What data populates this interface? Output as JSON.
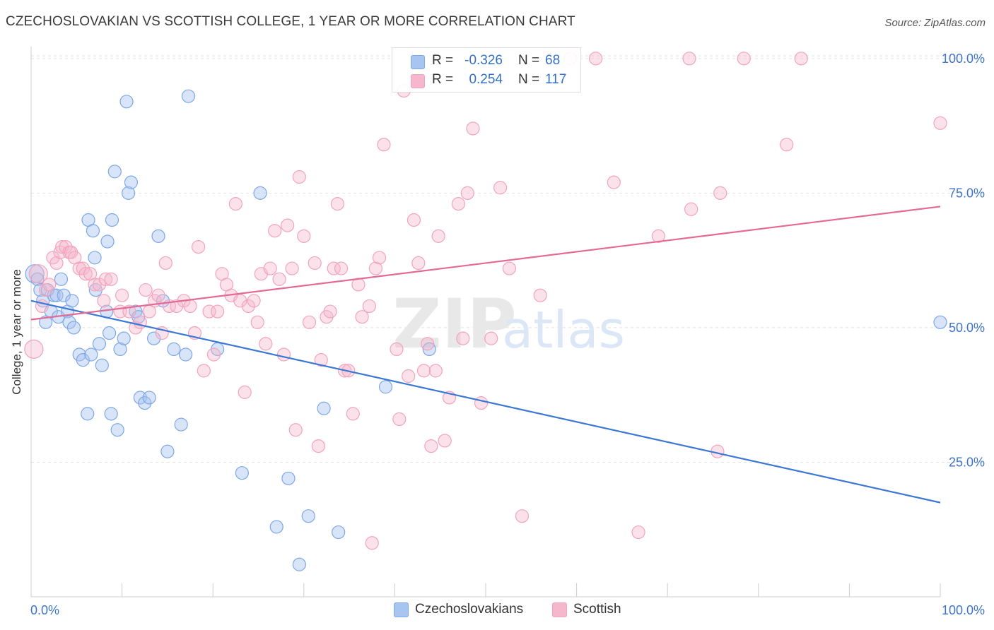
{
  "header": {
    "title": "CZECHOSLOVAKIAN VS SCOTTISH COLLEGE, 1 YEAR OR MORE CORRELATION CHART",
    "source": "Source: ZipAtlas.com"
  },
  "watermark": {
    "zip": "ZIP",
    "atlas": "atlas"
  },
  "legend": {
    "rows": [
      {
        "r_label": "R =",
        "r_value": "-0.326",
        "n_label": "N =",
        "n_value": "68",
        "color": "#a8c4f0"
      },
      {
        "r_label": "R =",
        "r_value": "0.254",
        "n_label": "N =",
        "n_value": "117",
        "color": "#f6b6cb"
      }
    ]
  },
  "bottom_legend": [
    {
      "label": "Czechoslovakians",
      "color": "#a8c4f0"
    },
    {
      "label": "Scottish",
      "color": "#f6b6cb"
    }
  ],
  "chart_data": {
    "type": "scatter",
    "ylabel": "College, 1 year or more",
    "xlabel": "",
    "xlim": [
      0,
      100
    ],
    "ylim": [
      0,
      103
    ],
    "x_tick_labels": [
      "0.0%",
      "100.0%"
    ],
    "y_tick_labels": [
      {
        "value": 100,
        "label": "100.0%"
      },
      {
        "value": 75,
        "label": "75.0%"
      },
      {
        "value": 50,
        "label": "50.0%"
      },
      {
        "value": 25,
        "label": "25.0%"
      }
    ],
    "grid": "dashed horizontal",
    "series": [
      {
        "name": "Czechoslovakians",
        "color": "#7ea7e6",
        "line_color": "#3b78d6",
        "trend": {
          "x": [
            0,
            100
          ],
          "y": [
            55,
            17.5
          ]
        },
        "points": [
          [
            0.4,
            60
          ],
          [
            0.7,
            59
          ],
          [
            1.0,
            57
          ],
          [
            1.3,
            55
          ],
          [
            1.6,
            51
          ],
          [
            1.8,
            57
          ],
          [
            2.2,
            53
          ],
          [
            2.5,
            56
          ],
          [
            2.8,
            56
          ],
          [
            3.0,
            52
          ],
          [
            3.3,
            59
          ],
          [
            3.6,
            56
          ],
          [
            4.0,
            53
          ],
          [
            4.2,
            51
          ],
          [
            4.5,
            55
          ],
          [
            4.7,
            50
          ],
          [
            5.3,
            45
          ],
          [
            5.7,
            44
          ],
          [
            6.2,
            34
          ],
          [
            6.3,
            70
          ],
          [
            6.6,
            45
          ],
          [
            6.8,
            68
          ],
          [
            7.0,
            63
          ],
          [
            7.1,
            57
          ],
          [
            7.5,
            47
          ],
          [
            7.8,
            43
          ],
          [
            8.3,
            53
          ],
          [
            8.4,
            66
          ],
          [
            8.6,
            49
          ],
          [
            8.8,
            34
          ],
          [
            8.9,
            70
          ],
          [
            9.2,
            79
          ],
          [
            9.5,
            31
          ],
          [
            9.8,
            46
          ],
          [
            10.2,
            48
          ],
          [
            10.5,
            92
          ],
          [
            10.7,
            75
          ],
          [
            11.0,
            77
          ],
          [
            11.5,
            53
          ],
          [
            11.8,
            52
          ],
          [
            12.0,
            37
          ],
          [
            12.5,
            36
          ],
          [
            13.0,
            37
          ],
          [
            13.5,
            48
          ],
          [
            14.0,
            67
          ],
          [
            14.5,
            55
          ],
          [
            15.0,
            27
          ],
          [
            15.7,
            46
          ],
          [
            16.5,
            32
          ],
          [
            17.0,
            45
          ],
          [
            17.3,
            93
          ],
          [
            20.5,
            46
          ],
          [
            23.2,
            23
          ],
          [
            25.2,
            75
          ],
          [
            27.0,
            13
          ],
          [
            28.3,
            22
          ],
          [
            29.5,
            6
          ],
          [
            30.5,
            15
          ],
          [
            32.2,
            35
          ],
          [
            33.8,
            12
          ],
          [
            39.0,
            39
          ],
          [
            43.8,
            46
          ],
          [
            100,
            51
          ]
        ]
      },
      {
        "name": "Scottish",
        "color": "#f2a3bd",
        "line_color": "#e46a95",
        "trend": {
          "x": [
            0,
            100
          ],
          "y": [
            51.5,
            72.5
          ]
        },
        "points": [
          [
            0.3,
            46
          ],
          [
            0.8,
            60
          ],
          [
            1.2,
            54
          ],
          [
            1.6,
            57
          ],
          [
            2.0,
            58
          ],
          [
            2.4,
            63
          ],
          [
            2.8,
            62
          ],
          [
            3.2,
            64
          ],
          [
            3.4,
            65
          ],
          [
            3.8,
            65
          ],
          [
            4.2,
            64
          ],
          [
            4.4,
            64
          ],
          [
            4.8,
            63
          ],
          [
            5.3,
            61
          ],
          [
            5.7,
            61
          ],
          [
            6.0,
            60
          ],
          [
            6.5,
            60
          ],
          [
            7.0,
            58
          ],
          [
            7.5,
            58
          ],
          [
            8.0,
            55
          ],
          [
            8.2,
            59
          ],
          [
            8.8,
            59
          ],
          [
            9.8,
            53
          ],
          [
            10.0,
            56
          ],
          [
            10.8,
            53
          ],
          [
            11.5,
            50
          ],
          [
            12.0,
            51
          ],
          [
            12.6,
            57
          ],
          [
            13.0,
            53
          ],
          [
            13.6,
            55
          ],
          [
            14.0,
            56
          ],
          [
            14.4,
            49
          ],
          [
            14.8,
            62
          ],
          [
            15.2,
            54
          ],
          [
            16.0,
            54
          ],
          [
            16.8,
            55
          ],
          [
            17.5,
            54
          ],
          [
            18.0,
            49
          ],
          [
            18.4,
            65
          ],
          [
            19.0,
            42
          ],
          [
            19.6,
            53
          ],
          [
            20.1,
            45
          ],
          [
            20.5,
            53
          ],
          [
            21.0,
            60
          ],
          [
            21.5,
            58
          ],
          [
            22.0,
            56
          ],
          [
            22.5,
            73
          ],
          [
            23.0,
            55
          ],
          [
            23.5,
            38
          ],
          [
            23.9,
            54
          ],
          [
            24.5,
            55
          ],
          [
            24.9,
            51
          ],
          [
            25.3,
            60
          ],
          [
            25.8,
            47
          ],
          [
            26.3,
            61
          ],
          [
            26.8,
            68
          ],
          [
            27.3,
            59
          ],
          [
            27.8,
            45
          ],
          [
            28.2,
            69
          ],
          [
            28.7,
            61
          ],
          [
            29.1,
            31
          ],
          [
            29.5,
            78
          ],
          [
            30.0,
            67
          ],
          [
            30.6,
            51
          ],
          [
            31.2,
            62
          ],
          [
            31.6,
            28
          ],
          [
            31.9,
            44
          ],
          [
            32.5,
            52
          ],
          [
            32.9,
            53
          ],
          [
            33.3,
            61
          ],
          [
            33.7,
            73
          ],
          [
            34.1,
            61
          ],
          [
            34.5,
            42
          ],
          [
            34.9,
            42
          ],
          [
            35.4,
            34
          ],
          [
            36.0,
            58
          ],
          [
            36.4,
            52
          ],
          [
            37.2,
            54
          ],
          [
            37.5,
            10
          ],
          [
            37.9,
            61
          ],
          [
            38.3,
            63
          ],
          [
            38.8,
            84
          ],
          [
            40.2,
            46
          ],
          [
            40.5,
            33
          ],
          [
            41.0,
            94
          ],
          [
            41.5,
            41
          ],
          [
            42.1,
            70
          ],
          [
            42.6,
            62
          ],
          [
            43.2,
            42
          ],
          [
            43.6,
            47
          ],
          [
            44.0,
            28
          ],
          [
            44.5,
            42
          ],
          [
            44.8,
            67
          ],
          [
            45.5,
            29
          ],
          [
            46.0,
            37
          ],
          [
            47.0,
            73
          ],
          [
            47.5,
            48
          ],
          [
            48.0,
            75
          ],
          [
            48.6,
            87
          ],
          [
            49.5,
            36
          ],
          [
            50.6,
            48
          ],
          [
            51.6,
            76
          ],
          [
            52.6,
            61
          ],
          [
            54.0,
            15
          ],
          [
            56.0,
            56
          ],
          [
            59.3,
            100
          ],
          [
            62.1,
            100
          ],
          [
            64.1,
            77
          ],
          [
            66.8,
            12
          ],
          [
            69.0,
            67
          ],
          [
            72.4,
            100
          ],
          [
            72.6,
            72
          ],
          [
            75.5,
            27
          ],
          [
            75.8,
            75
          ],
          [
            78.4,
            100
          ],
          [
            83.1,
            84
          ],
          [
            84.7,
            100
          ],
          [
            100,
            88
          ]
        ]
      }
    ]
  }
}
